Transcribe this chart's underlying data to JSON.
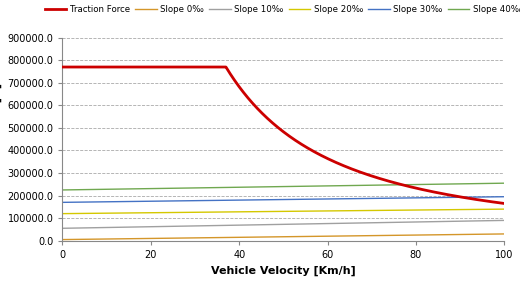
{
  "title": "",
  "xlabel": "Vehicle Velocity [Km/h]",
  "ylabel": "Traction Force [N]",
  "xlim": [
    0,
    100
  ],
  "ylim": [
    0,
    900000
  ],
  "yticks": [
    0,
    100000,
    200000,
    300000,
    400000,
    500000,
    600000,
    700000,
    800000,
    900000
  ],
  "xticks": [
    0,
    20,
    40,
    60,
    80,
    100
  ],
  "traction_color": "#CC0000",
  "slope0_color": "#D4962A",
  "slope10_color": "#A0A0A0",
  "slope20_color": "#D4C800",
  "slope30_color": "#4472C4",
  "slope40_color": "#70A850",
  "traction_label": "Traction Force",
  "slope0_label": "Slope 0‰",
  "slope10_label": "Slope 10‰",
  "slope20_label": "Slope 20‰",
  "slope30_label": "Slope 30‰",
  "slope40_label": "Slope 40‰",
  "v_const_start": 37,
  "traction_const": 770000,
  "traction_at_100": 165000,
  "slopes": {
    "slope0": {
      "v0": 5000,
      "v100": 30000
    },
    "slope10": {
      "v0": 55000,
      "v100": 90000
    },
    "slope20": {
      "v0": 120000,
      "v100": 140000
    },
    "slope30": {
      "v0": 170000,
      "v100": 195000
    },
    "slope40": {
      "v0": 225000,
      "v100": 255000
    }
  },
  "background_color": "#ffffff",
  "grid_color": "#aaaaaa"
}
